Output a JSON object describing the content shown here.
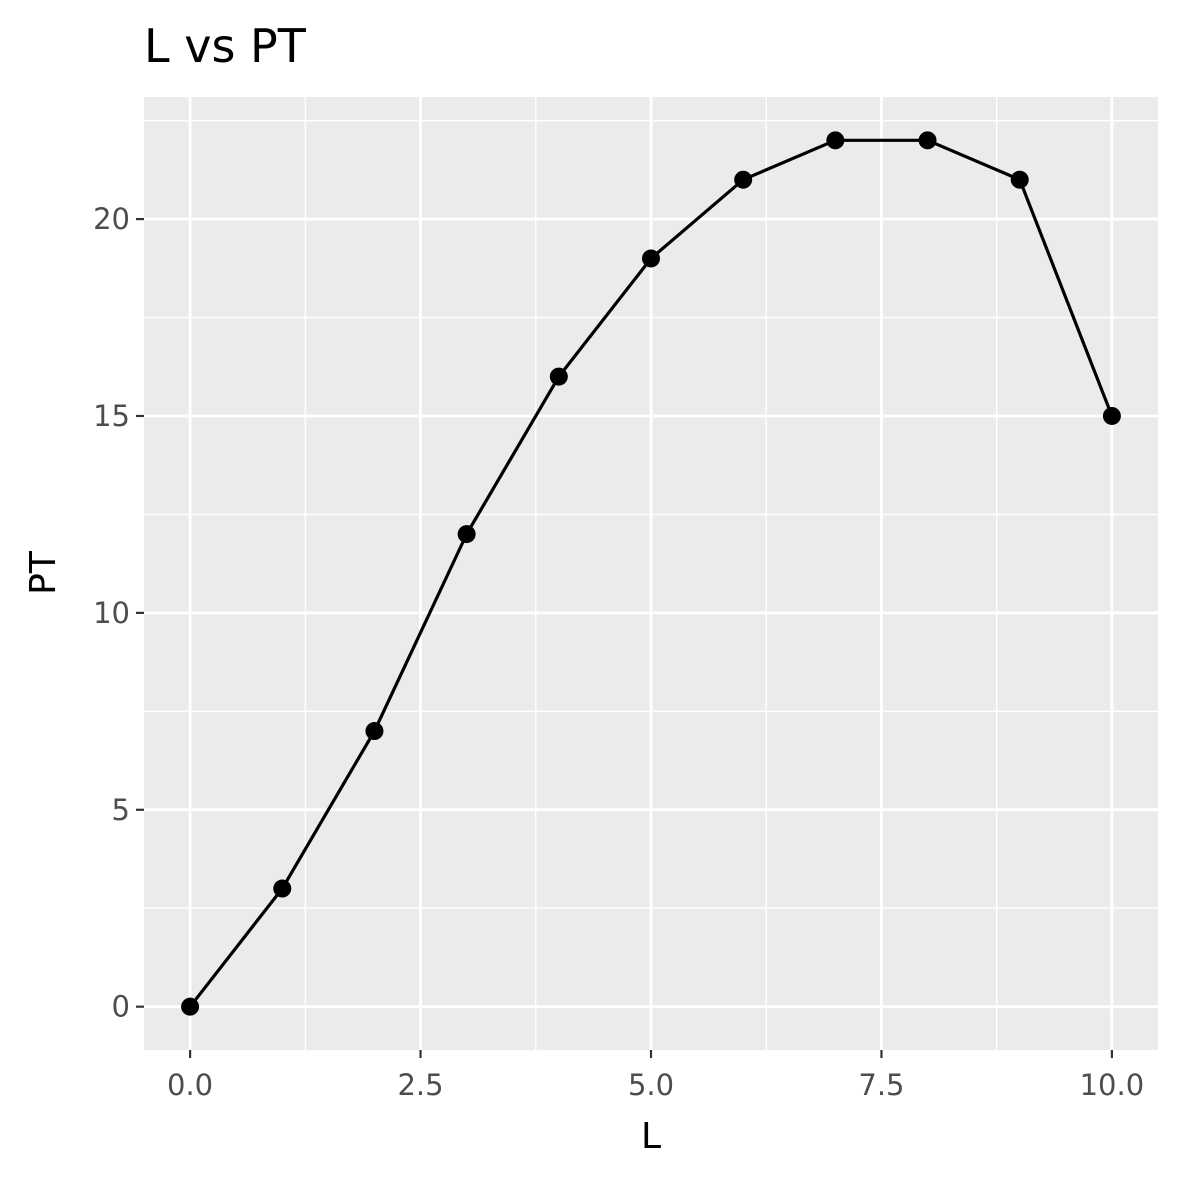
{
  "chart_data": {
    "type": "line",
    "title": "L vs PT",
    "xlabel": "L",
    "ylabel": "PT",
    "x": [
      0,
      1,
      2,
      3,
      4,
      5,
      6,
      7,
      8,
      9,
      10
    ],
    "series": [
      {
        "values": [
          0,
          3,
          7,
          12,
          16,
          19,
          21,
          22,
          22,
          21,
          15
        ]
      }
    ],
    "xlim": [
      -0.5,
      10.5
    ],
    "ylim": [
      -1.1,
      23.1
    ],
    "x_ticks": [
      0,
      2.5,
      5,
      7.5,
      10
    ],
    "x_tick_labels": [
      "0.0",
      "2.5",
      "5.0",
      "7.5",
      "10.0"
    ],
    "y_ticks": [
      0,
      5,
      10,
      15,
      20
    ],
    "y_tick_labels": [
      "0",
      "5",
      "10",
      "15",
      "20"
    ],
    "markers": true,
    "grid": true,
    "legend": "none",
    "colors": {
      "panel_background": "#ebebeb",
      "grid": "#ffffff",
      "line": "#000000",
      "tick_label": "#4d4d4d",
      "tick_mark": "#333333"
    }
  }
}
